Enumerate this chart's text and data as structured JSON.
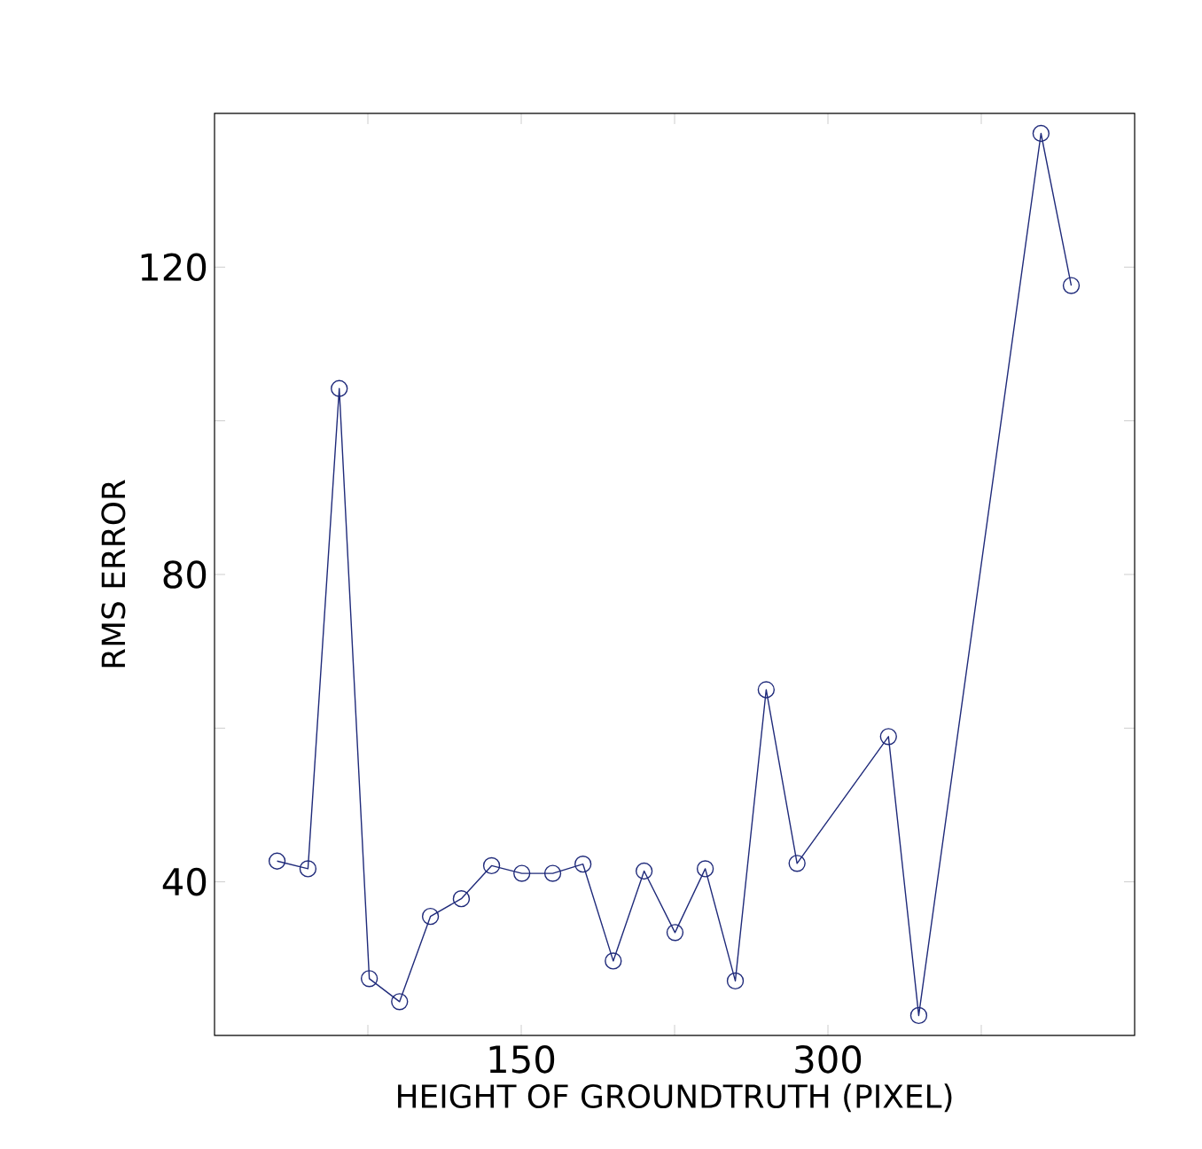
{
  "chart_data": {
    "type": "line",
    "xlabel": "HEIGHT OF GROUNDTRUTH (PIXEL)",
    "ylabel": "RMS ERROR",
    "x": [
      30.6,
      45.7,
      61,
      75.7,
      90.5,
      105.6,
      120.7,
      135.5,
      150.3,
      165.4,
      180.2,
      195,
      210.1,
      225.2,
      240,
      254.7,
      269.8,
      284.9,
      329.6,
      344.4,
      404.2,
      419
    ],
    "series": [
      {
        "color": "#1f2a7a",
        "values": [
          42.7,
          41.7,
          104.2,
          27.4,
          24.4,
          35.5,
          37.8,
          42.1,
          41.1,
          41.1,
          42.3,
          29.7,
          41.4,
          33.4,
          41.7,
          27.1,
          65,
          42.4,
          58.9,
          22.6,
          137.4,
          117.6
        ]
      }
    ],
    "xlim": [
      0,
      450
    ],
    "ylim": [
      20,
      140
    ],
    "xticks": [
      {
        "value": 75,
        "label": null
      },
      150,
      {
        "value": 225,
        "label": null
      },
      300,
      {
        "value": 375,
        "label": null
      }
    ],
    "yticks": [
      {
        "value": 60,
        "label": null
      },
      40,
      80,
      {
        "value": 100,
        "label": null
      },
      120
    ],
    "marker": "circle",
    "line_style": "solid"
  }
}
